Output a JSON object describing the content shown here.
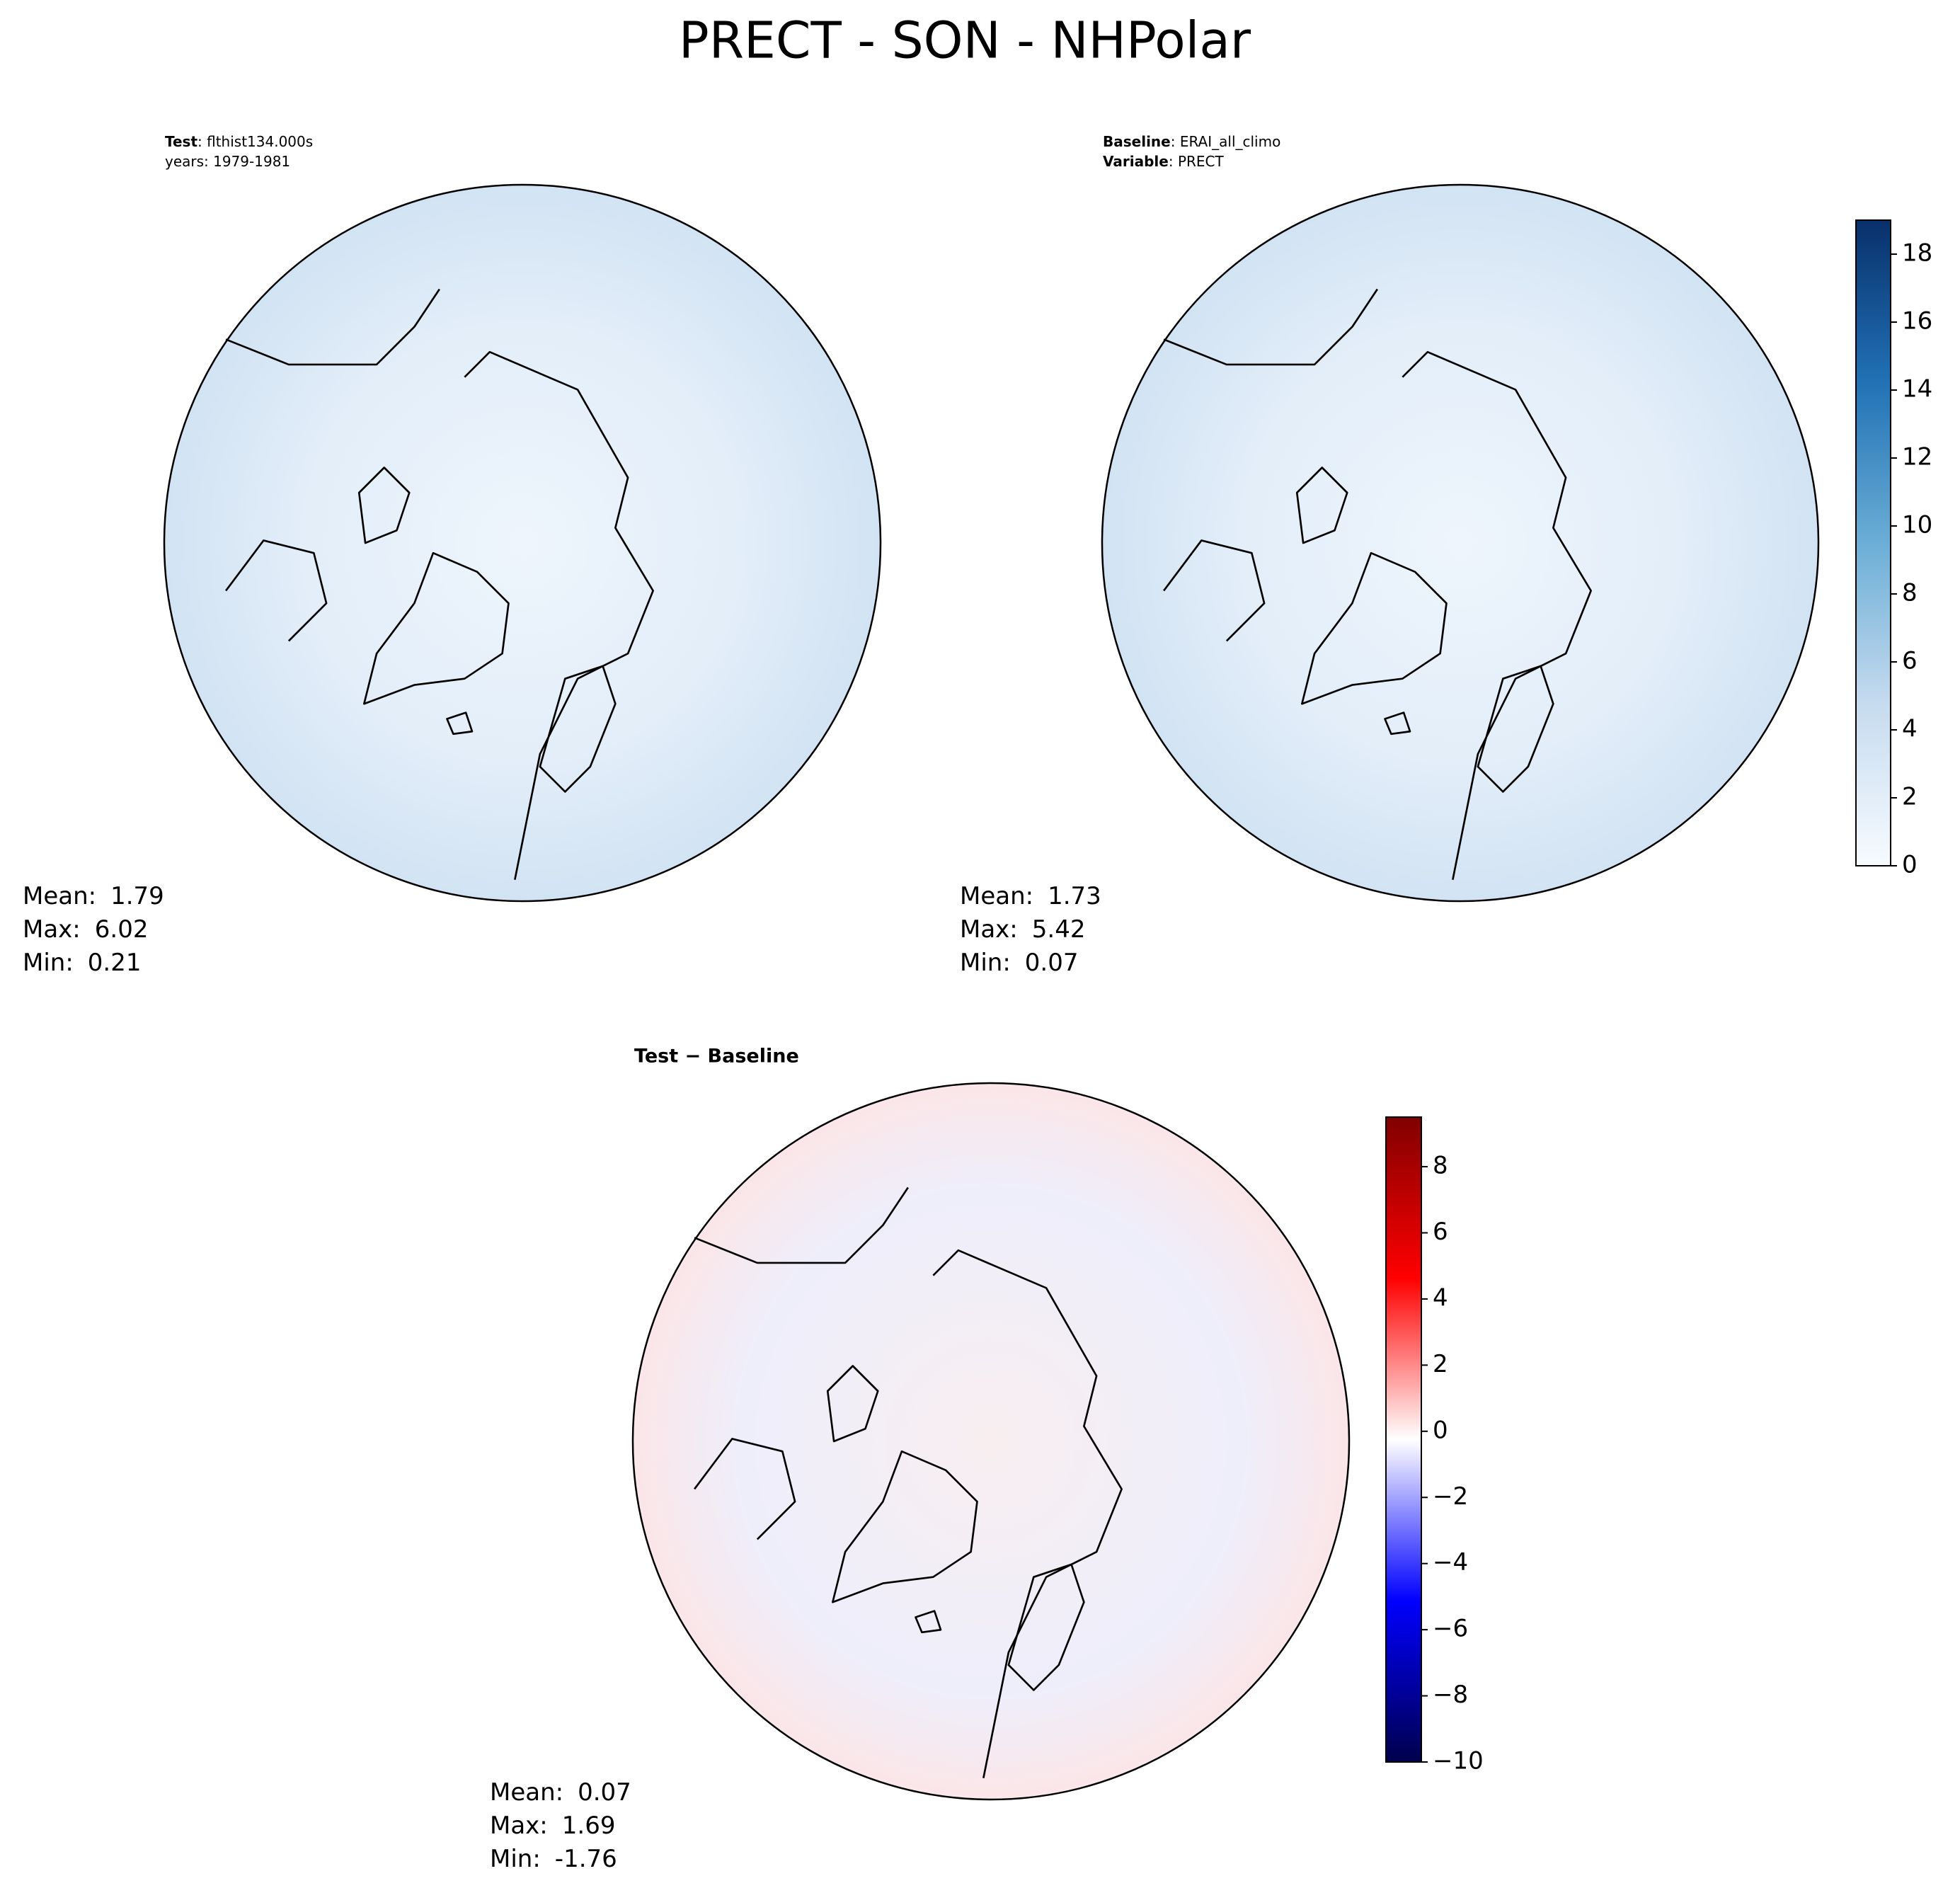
{
  "title": "PRECT - SON - NHPolar",
  "panels": [
    {
      "header": [
        {
          "key": "Test",
          "text": ": flthist134.000s"
        },
        {
          "text": "years: 1979-1981"
        }
      ],
      "stats": [
        {
          "label": "Mean:",
          "value": 1.79
        },
        {
          "label": "Max:",
          "value": 6.02
        },
        {
          "label": "Min:",
          "value": 0.21
        }
      ]
    },
    {
      "header": [
        {
          "key": "Baseline",
          "text": ": ERAI_all_climo"
        },
        {
          "key": "Variable",
          "text": ": PRECT"
        }
      ],
      "stats": [
        {
          "label": "Mean:",
          "value": 1.73
        },
        {
          "label": "Max:",
          "value": 5.42
        },
        {
          "label": "Min:",
          "value": 0.07
        }
      ]
    },
    {
      "title": "Test − Baseline",
      "stats": [
        {
          "label": "Mean:",
          "value": 0.07
        },
        {
          "label": "Max:",
          "value": 1.69
        },
        {
          "label": "Min:",
          "value": -1.76
        }
      ]
    }
  ],
  "colorbars": [
    {
      "lim": [
        0,
        19
      ],
      "ticks": [
        0,
        2,
        4,
        6,
        8,
        10,
        12,
        14,
        16,
        18
      ],
      "colors": [
        "#f7fbff",
        "#c6dbef",
        "#6baed6",
        "#2171b5",
        "#08306b"
      ]
    },
    {
      "lim": [
        -10,
        9.5
      ],
      "ticks": [
        {
          "value": -10,
          "label": "−10"
        },
        {
          "value": -8,
          "label": "−8"
        },
        {
          "value": -6,
          "label": "−6"
        },
        {
          "value": -4,
          "label": "−4"
        },
        {
          "value": -2,
          "label": "−2"
        },
        0,
        2,
        4,
        6,
        8
      ],
      "colors": [
        "#00004d",
        "#0000ff",
        "#ffffff",
        "#ff0000",
        "#800000"
      ]
    }
  ]
}
